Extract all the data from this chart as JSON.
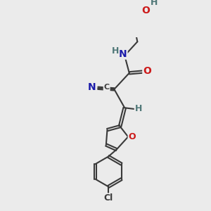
{
  "bg_color": "#ebebeb",
  "C_color": "#404040",
  "N_color": "#1a1aaa",
  "O_color": "#cc1a1a",
  "Cl_color": "#3a3a3a",
  "H_color": "#507878",
  "bond_color": "#3a3a3a",
  "bond_lw": 1.5,
  "figsize": [
    3.0,
    3.0
  ],
  "dpi": 100,
  "xlim": [
    0,
    300
  ],
  "ylim": [
    0,
    300
  ]
}
